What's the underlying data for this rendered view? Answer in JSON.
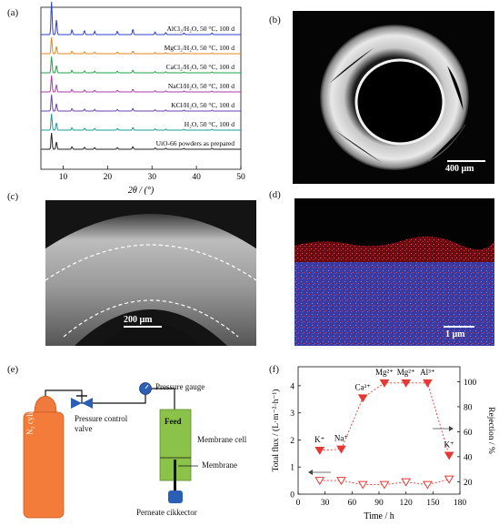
{
  "panel_labels": [
    "(a)",
    "(b)",
    "(c)",
    "(d)",
    "(e)",
    "(f)"
  ],
  "panel_a": {
    "series": [
      {
        "label": "AlCl₃/H₂O, 50 °C, 100 d",
        "color": "#2c3fd0"
      },
      {
        "label": "MgCl₂/H₂O, 50 °C, 100 d",
        "color": "#e5871d"
      },
      {
        "label": "CaCl₂/H₂O, 50 °C, 100 d",
        "color": "#22a34a"
      },
      {
        "label": "NaCl/H₂O, 50 °C, 100 d",
        "color": "#b03aa8"
      },
      {
        "label": "KCl/H₂O, 50 °C, 100 d",
        "color": "#6a3fb0"
      },
      {
        "label": "H₂O, 50 °C, 100 d",
        "color": "#199c9a"
      },
      {
        "label": "UiO-66 powders as prepared",
        "color": "#222222"
      }
    ],
    "x_ticks": [
      "10",
      "20",
      "30",
      "40",
      "50"
    ],
    "xlabel": "2θ / (°)"
  },
  "panel_b": {
    "scale": "400 μm"
  },
  "panel_c": {
    "scale": "200 μm"
  },
  "panel_d": {
    "scale": "1 μm"
  },
  "panel_e": {
    "cylinder": "N₂ cylinder",
    "valve": "Pressure control valve",
    "gauge": "Pressure gauge",
    "feed": "Feed",
    "cell": "Membrane cell",
    "membrane": "Membrane",
    "collector": "Perneate cikkector"
  },
  "chart_data": {
    "type": "line",
    "x": [
      24,
      48,
      72,
      96,
      120,
      144,
      168
    ],
    "xlabel": "Time / h",
    "xlim": [
      0,
      180
    ],
    "x_ticks": [
      0,
      30,
      60,
      90,
      120,
      150,
      180
    ],
    "ylabel": "Total flux / (L·m⁻²·h⁻¹)",
    "ylim": [
      0,
      4.7
    ],
    "y_ticks": [
      0,
      1,
      2,
      3,
      4
    ],
    "y2label": "Rejection / %",
    "y2lim": [
      10,
      112
    ],
    "y2_ticks": [
      20,
      40,
      60,
      80,
      100
    ],
    "series": [
      {
        "axis": "left",
        "marker": "open-triangle-down",
        "values": [
          0.5,
          0.5,
          0.35,
          0.35,
          0.45,
          0.35,
          0.55
        ]
      },
      {
        "axis": "right",
        "marker": "filled-triangle-down",
        "values": [
          45,
          46,
          87,
          99,
          99,
          99,
          41
        ]
      }
    ],
    "annotations": [
      "K⁺",
      "Na⁺",
      "Ca²⁺",
      "Mg²⁺",
      "Mg²⁺",
      "Al³⁺",
      "K⁺"
    ]
  }
}
